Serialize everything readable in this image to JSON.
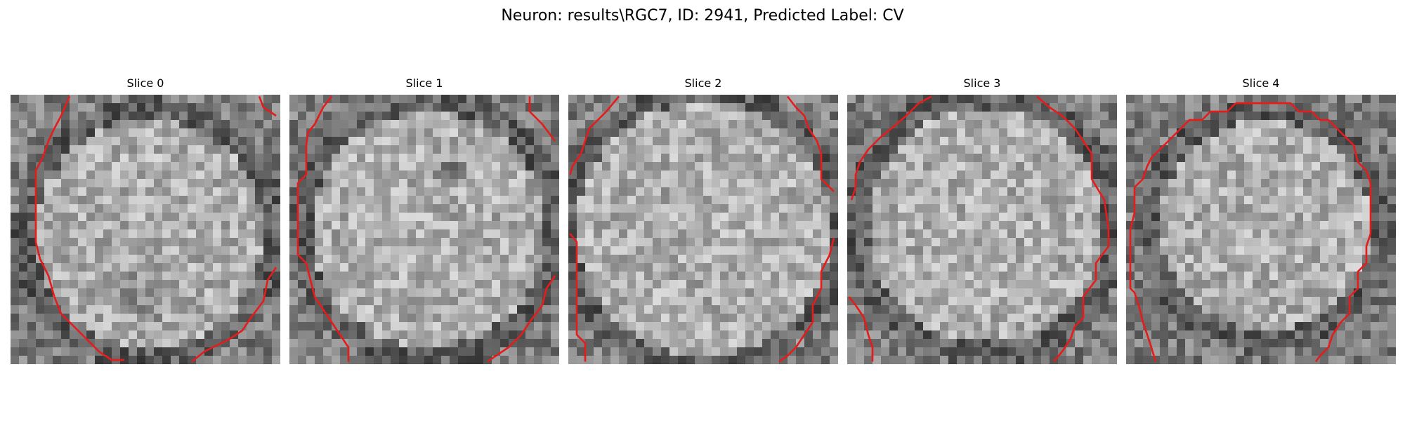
{
  "figure": {
    "title": "Neuron: results\\RGC7, ID: 2941, Predicted Label: CV"
  },
  "colors": {
    "contour": "#e51c1c",
    "background": "#ffffff"
  },
  "panels": [
    {
      "title": "Slice 0"
    },
    {
      "title": "Slice 1"
    },
    {
      "title": "Slice 2"
    },
    {
      "title": "Slice 3"
    },
    {
      "title": "Slice 4"
    }
  ]
}
